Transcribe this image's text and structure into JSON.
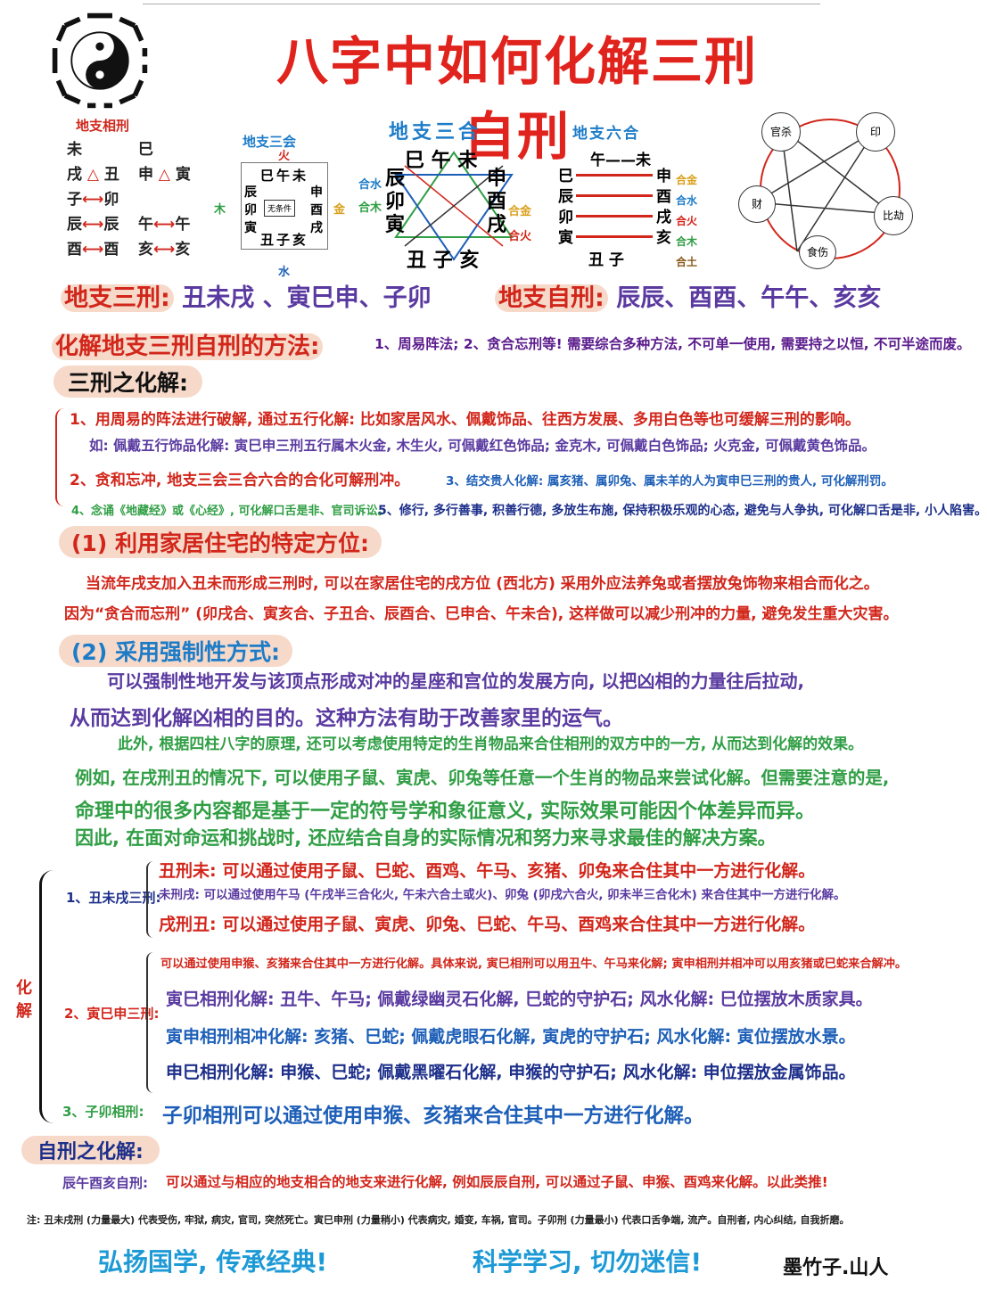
{
  "title": "八字中如何化解三刑自刑",
  "diagrams": {
    "d1": {
      "title": "地支相刑",
      "left": [
        "未",
        "戌",
        "丑",
        "子",
        "卯",
        "辰",
        "辰",
        "酉",
        "酉"
      ],
      "right": [
        "巳",
        "申",
        "寅",
        "午",
        "午",
        "亥",
        "亥"
      ]
    },
    "d2": {
      "title": "地支三会",
      "top": "火",
      "left": "木",
      "right": "金",
      "bottom": "水",
      "row1": "巳午未",
      "col_left": "辰卯寅",
      "col_right": "申酉戌",
      "row2": "丑子亥",
      "center": "无条件"
    },
    "d3": {
      "title": "地支三合",
      "top": "巳 午 未",
      "left": "辰卯寅",
      "right": "申酉戌",
      "bottom": "丑 子 亥",
      "lmark1": "合水",
      "lmark2": "合木",
      "rmark1": "合金",
      "rmark2": "合火"
    },
    "d4": {
      "title": "地支六合",
      "left": "巳辰卯寅",
      "right": "申酉戌亥",
      "top": "午——未",
      "bottom": "丑 子",
      "notes": [
        "合金",
        "合水",
        "合火",
        "合木",
        "合土"
      ]
    },
    "d5": {
      "nodes": [
        "官杀",
        "印",
        "比劫",
        "食伤",
        "财"
      ]
    }
  },
  "line_sanxing_label": "地支三刑:",
  "line_sanxing_text": "丑未戌 、寅巳申、子卯",
  "line_zixing_label": "地支自刑:",
  "line_zixing_text": "辰辰、酉酉、午午、亥亥",
  "method_label": "化解地支三刑自刑的方法:",
  "method_text": "1、周易阵法; 2、贪合忘刑等! 需要综合多种方法, 不可单一使用, 需要持之以恒, 不可半途而废。",
  "sanxing_heading": "三刑之化解:",
  "item1": "1、用周易的阵法进行破解, 通过五行化解: 比如家居风水、佩戴饰品、往西方发展、多用白色等也可缓解三刑的影响。",
  "item1b": "如: 佩戴五行饰品化解: 寅巳申三刑五行属木火金, 木生火, 可佩戴红色饰品; 金克木, 可佩戴白色饰品; 火克金, 可佩戴黄色饰品。",
  "item2": "2、贪和忘冲, 地支三会三合六合的合化可解刑冲。",
  "item3": "3、结交贵人化解: 属亥猪、属卯兔、属未羊的人为寅申巳三刑的贵人, 可化解刑罚。",
  "item4": "4、念诵《地藏经》或《心经》, 可化解口舌是非、官司诉讼。",
  "item5": "5、修行, 多行善事, 积善行德, 多放生布施, 保持积极乐观的心态, 避免与人争执, 可化解口舌是非, 小人陷害。",
  "sec1_heading": "(1) 利用家居住宅的特定方位:",
  "sec1_line1": "当流年戌支加入丑未而形成三刑时, 可以在家居住宅的戌方位 (西北方) 采用外应法养兔或者摆放兔饰物来相合而化之。",
  "sec1_line2": "因为“贪合而忘刑” (卯戌合、寅亥合、子丑合、辰酉合、巳申合、午未合), 这样做可以减少刑冲的力量, 避免发生重大灾害。",
  "sec2_heading": "(2) 采用强制性方式:",
  "sec2_line1": "可以强制性地开发与该顶点形成对冲的星座和宫位的发展方向, 以把凶相的力量往后拉动,",
  "sec2_line2": "从而达到化解凶相的目的。这种方法有助于改善家里的运气。",
  "green_line1": "此外, 根据四柱八字的原理, 还可以考虑使用特定的生肖物品来合住相刑的双方中的一方, 从而达到化解的效果。",
  "green_line2": "例如, 在戌刑丑的情况下, 可以使用子鼠、寅虎、卯兔等任意一个生肖的物品来尝试化解。但需要注意的是,",
  "green_line3": "命理中的很多内容都是基于一定的符号学和象征意义, 实际效果可能因个体差异而异。",
  "green_line4": "因此, 在面对命运和挑战时, 还应结合自身的实际情况和努力来寻求最佳的解决方案。",
  "huajie_side": "化解",
  "g1_label": "1、丑未戌三刑:",
  "g1_a": "丑刑未: 可以通过使用子鼠、巳蛇、酉鸡、午马、亥猪、卯兔来合住其中一方进行化解。",
  "g1_b": "未刑戌: 可以通过使用午马 (午戌半三合化火, 午未六合土或火)、卯兔 (卯戌六合火, 卯未半三合化木) 来合住其中一方进行化解。",
  "g1_c": "戌刑丑: 可以通过使用子鼠、寅虎、卯兔、巳蛇、午马、酉鸡来合住其中一方进行化解。",
  "g2_label": "2、寅巳申三刑:",
  "g2_a": "可以通过使用申猴、亥猪来合住其中一方进行化解。具体来说, 寅巳相刑可以用丑牛、午马来化解; 寅申相刑并相冲可以用亥猪或巳蛇来合解冲。",
  "g2_b": "寅巳相刑化解: 丑牛、午马; 佩戴绿幽灵石化解, 巳蛇的守护石; 风水化解: 巳位摆放木质家具。",
  "g2_c": "寅申相刑相冲化解: 亥猪、巳蛇; 佩戴虎眼石化解, 寅虎的守护石; 风水化解: 寅位摆放水景。",
  "g2_d": "申巳相刑化解: 申猴、巳蛇; 佩戴黑曜石化解, 申猴的守护石; 风水化解: 申位摆放金属饰品。",
  "g3_label": "3、子卯相刑:",
  "g3_text": "子卯相刑可以通过使用申猴、亥猪来合住其中一方进行化解。",
  "zixing_heading": "自刑之化解:",
  "zixing_label": "辰午酉亥自刑:",
  "zixing_text": "可以通过与相应的地支相合的地支来进行化解, 例如辰辰自刑, 可以通过子鼠、申猴、酉鸡来化解。以此类推!",
  "note": "注: 丑未戌刑 (力量最大) 代表受伤, 牢狱, 病灾, 官司, 突然死亡。寅巳申刑 (力量稍小) 代表病灾, 婚变, 车祸, 官司。子卯刑 (力量最小) 代表口舌争端, 流产。自刑者, 内心纠结, 自我折磨。",
  "footer_left": "弘扬国学, 传承经典!",
  "footer_mid": "科学学习, 切勿迷信!",
  "footer_author": "墨竹子.山人",
  "colors": {
    "red": "#d2261b",
    "blue": "#1d5fb8",
    "purple": "#5a3aa0",
    "green": "#2f9e44",
    "navy": "#1d2f8a"
  }
}
